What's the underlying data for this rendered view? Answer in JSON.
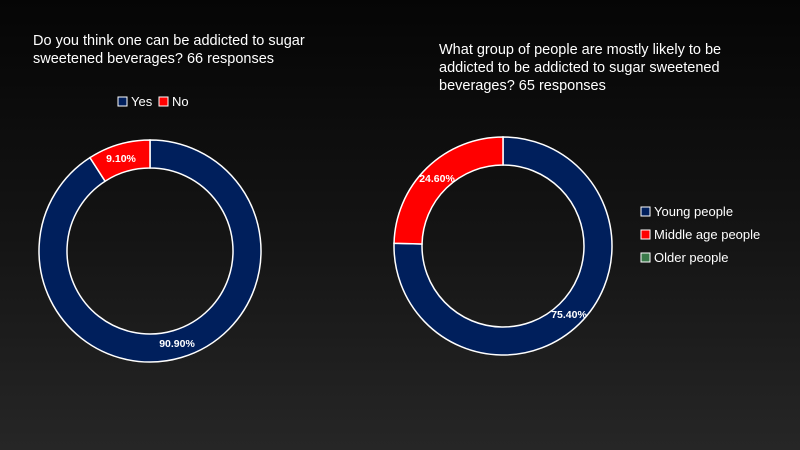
{
  "chart_data": [
    {
      "type": "pie",
      "style": "donut",
      "title_lines": [
        "Do you think one can be addicted to sugar",
        "sweetened beverages?  66 responses"
      ],
      "legend_position": "top",
      "series": [
        {
          "name": "Yes",
          "value": 90.9,
          "label": "90.90%",
          "color": "#001f5c"
        },
        {
          "name": "No",
          "value": 9.1,
          "label": "9.10%",
          "color": "#ff0000"
        }
      ]
    },
    {
      "type": "pie",
      "style": "donut",
      "title_lines": [
        "What group of people are mostly likely to be",
        "addicted to be addicted to sugar sweetened",
        "beverages? 65 responses"
      ],
      "legend_position": "right",
      "series": [
        {
          "name": "Young people",
          "value": 75.4,
          "label": "75.40%",
          "color": "#001f5c"
        },
        {
          "name": "Middle age people",
          "value": 24.6,
          "label": "24.60%",
          "color": "#ff0000"
        },
        {
          "name": "Older people",
          "value": 0,
          "label": "",
          "color": "#3a7a4a"
        }
      ]
    }
  ]
}
